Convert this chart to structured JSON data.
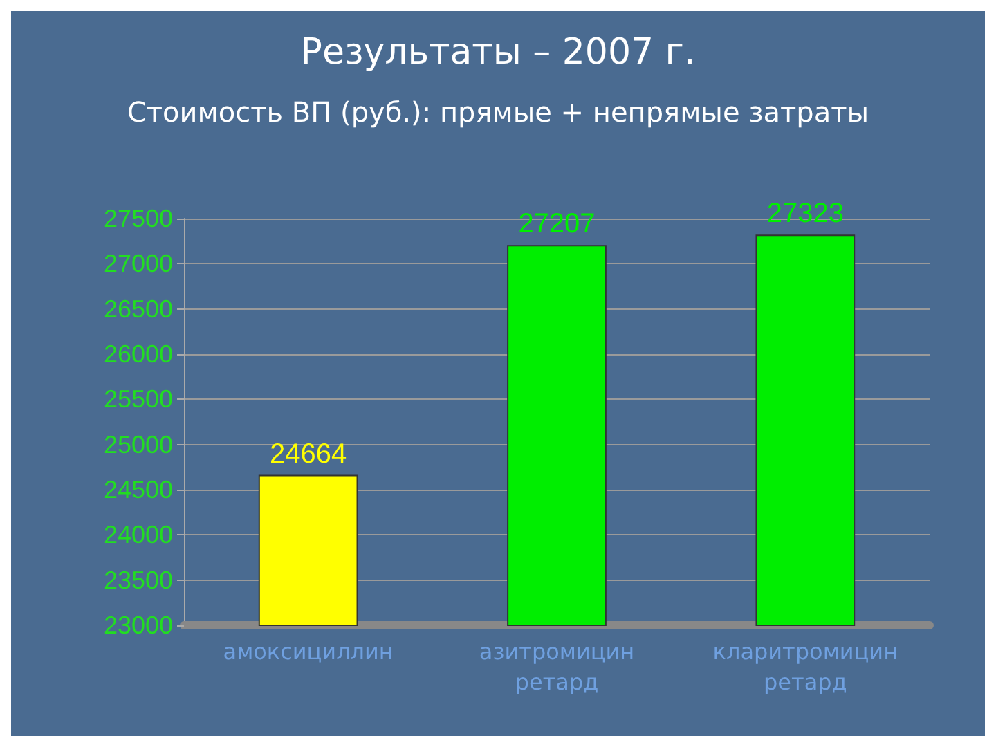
{
  "chart_data": {
    "type": "bar",
    "title": "Результаты – 2007 г.",
    "subtitle": "Стоимость ВП (руб.): прямые + непрямые затраты",
    "categories": [
      "амоксициллин",
      "азитромицин\nретард",
      "кларитромицин\nретард"
    ],
    "values": [
      24664,
      27207,
      27323
    ],
    "colors": [
      "#ffff00",
      "#00ee00",
      "#00ee00"
    ],
    "data_labels": true,
    "ylim": [
      23000,
      27500
    ],
    "yticks": [
      23000,
      23500,
      24000,
      24500,
      25000,
      25500,
      26000,
      26500,
      27000,
      27500
    ],
    "grid": "y"
  }
}
